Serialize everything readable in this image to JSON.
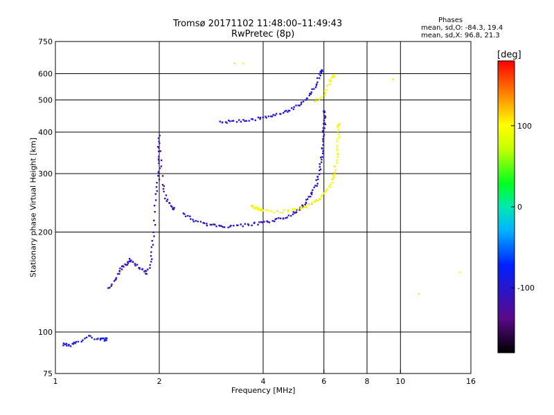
{
  "header": {
    "title_line1": "Tromsø 20171102 11:48:00–11:49:43",
    "title_line2": "RwPretec (8p)"
  },
  "stats": {
    "heading": "Phases",
    "o_line": "mean, sd,O: -84.3, 19.4",
    "x_line": "mean, sd,X:  96.8, 21.3"
  },
  "colorbar": {
    "label": "[deg]",
    "min": -180,
    "max": 180,
    "ticks": [
      {
        "value": 100,
        "label": "100"
      },
      {
        "value": 0,
        "label": "0"
      },
      {
        "value": -100,
        "label": "-100"
      }
    ]
  },
  "chart_data": {
    "type": "scatter",
    "xlabel": "Frequency [MHz]",
    "ylabel": "Stationary phase Virtual Height [km]",
    "xscale": "log",
    "yscale": "log",
    "xlim": [
      1,
      16
    ],
    "ylim": [
      75,
      750
    ],
    "xticks": [
      1,
      2,
      4,
      6,
      8,
      10,
      16
    ],
    "yticks": [
      75,
      100,
      200,
      300,
      400,
      500,
      600,
      750
    ],
    "x_grid": [
      2,
      4,
      6,
      8,
      10
    ],
    "y_grid": [
      100,
      200,
      300,
      400,
      500,
      600
    ],
    "grid": true,
    "series": [
      {
        "trace": "lower-O",
        "phase": -105,
        "points": [
          [
            2.35,
            228
          ],
          [
            2.5,
            218
          ],
          [
            2.7,
            212
          ],
          [
            2.9,
            209
          ],
          [
            3.1,
            208
          ],
          [
            3.4,
            209
          ],
          [
            3.7,
            211
          ],
          [
            4.0,
            213
          ],
          [
            4.3,
            216
          ],
          [
            4.6,
            221
          ],
          [
            4.9,
            228
          ],
          [
            5.1,
            235
          ],
          [
            5.3,
            244
          ],
          [
            5.5,
            258
          ],
          [
            5.7,
            278
          ],
          [
            5.8,
            300
          ],
          [
            5.9,
            330
          ],
          [
            5.95,
            360
          ],
          [
            6.0,
            400
          ],
          [
            6.02,
            430
          ],
          [
            6.03,
            460
          ]
        ]
      },
      {
        "trace": "lower-X",
        "phase": 100,
        "points": [
          [
            3.7,
            240
          ],
          [
            3.8,
            236
          ],
          [
            3.9,
            234
          ],
          [
            4.0,
            233
          ],
          [
            4.5,
            230
          ],
          [
            4.9,
            233
          ],
          [
            5.2,
            237
          ],
          [
            5.5,
            243
          ],
          [
            5.8,
            252
          ],
          [
            6.1,
            263
          ],
          [
            6.3,
            282
          ],
          [
            6.45,
            305
          ],
          [
            6.55,
            340
          ],
          [
            6.6,
            380
          ],
          [
            6.62,
            420
          ]
        ]
      },
      {
        "trace": "upper-O",
        "phase": -100,
        "points": [
          [
            3.0,
            430
          ],
          [
            3.2,
            430
          ],
          [
            3.5,
            433
          ],
          [
            3.8,
            438
          ],
          [
            4.1,
            443
          ],
          [
            4.4,
            452
          ],
          [
            4.7,
            462
          ],
          [
            5.0,
            478
          ],
          [
            5.3,
            500
          ],
          [
            5.55,
            530
          ],
          [
            5.75,
            570
          ],
          [
            5.9,
            610
          ]
        ]
      },
      {
        "trace": "upper-X",
        "phase": 95,
        "points": [
          [
            5.6,
            490
          ],
          [
            6.0,
            520
          ],
          [
            6.2,
            560
          ],
          [
            6.4,
            590
          ]
        ]
      },
      {
        "trace": "spread-F-low",
        "phase": -110,
        "points": [
          [
            1.42,
            135
          ],
          [
            1.5,
            145
          ],
          [
            1.55,
            155
          ],
          [
            1.6,
            160
          ],
          [
            1.65,
            165
          ],
          [
            1.7,
            160
          ],
          [
            1.78,
            155
          ],
          [
            1.85,
            150
          ],
          [
            1.9,
            170
          ],
          [
            1.93,
            200
          ],
          [
            1.96,
            260
          ],
          [
            2.0,
            300
          ],
          [
            1.98,
            340
          ],
          [
            2.0,
            390
          ],
          [
            2.05,
            280
          ],
          [
            2.1,
            250
          ],
          [
            2.2,
            235
          ]
        ]
      },
      {
        "trace": "e-layer",
        "phase": -90,
        "points": [
          [
            1.05,
            92
          ],
          [
            1.1,
            91
          ],
          [
            1.15,
            93
          ],
          [
            1.25,
            97
          ],
          [
            1.35,
            95
          ],
          [
            1.4,
            95
          ]
        ]
      },
      {
        "trace": "isolated",
        "phase": 90,
        "points": [
          [
            9.5,
            580
          ],
          [
            11.3,
            130
          ],
          [
            14.8,
            150
          ],
          [
            3.3,
            640
          ],
          [
            3.5,
            640
          ]
        ]
      }
    ]
  }
}
